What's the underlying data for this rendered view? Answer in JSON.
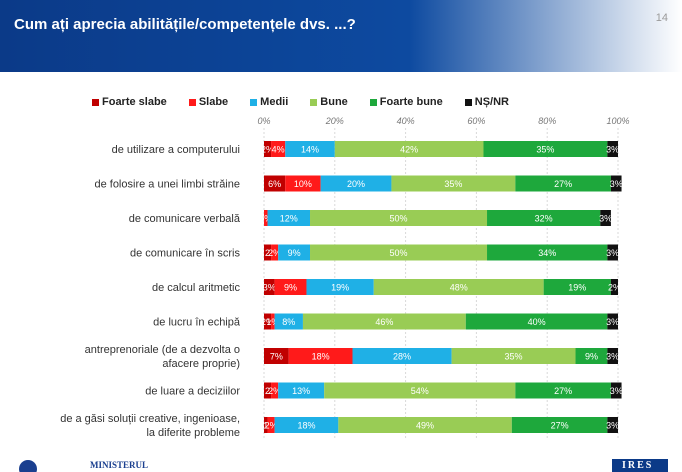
{
  "header": {
    "title": "Cum ați aprecia abilitățile/competențele dvs. ...?",
    "page_number": "14"
  },
  "colors": {
    "foarte_slabe": "#c00000",
    "slabe": "#ff1a1a",
    "medii": "#1fb0e6",
    "bune": "#99cc55",
    "foarte_bune": "#1ea83c",
    "ns_nr": "#111111"
  },
  "footer": {
    "logo_text": "MINISTERUL",
    "brand": "IRES"
  },
  "chart_data": {
    "type": "bar",
    "stacked": true,
    "orientation": "horizontal",
    "xlim": [
      0,
      100
    ],
    "x_ticks": [
      "0%",
      "20%",
      "40%",
      "60%",
      "80%",
      "100%"
    ],
    "legend_position": "top",
    "categories": [
      "de utilizare a computerului",
      "de folosire a unei  limbi străine",
      "de comunicare verbală",
      "de comunicare în scris",
      "de calcul aritmetic",
      "de lucru în echipă",
      "antreprenoriale (de a dezvolta o afacere proprie)",
      "de luare a deciziilor",
      "de a găsi soluții creative, ingenioase, la diferite probleme"
    ],
    "category_lines": [
      [
        "de utilizare a computerului"
      ],
      [
        "de folosire a unei  limbi străine"
      ],
      [
        "de comunicare verbală"
      ],
      [
        "de comunicare în scris"
      ],
      [
        "de calcul aritmetic"
      ],
      [
        "de lucru în echipă"
      ],
      [
        "antreprenoriale (de a dezvolta o",
        "afacere proprie)"
      ],
      [
        "de luare a deciziilor"
      ],
      [
        "de a găsi soluții creative, ingenioase,",
        "la diferite probleme"
      ]
    ],
    "series": [
      {
        "name": "Foarte slabe",
        "color": "#c00000",
        "values": [
          2,
          6,
          0,
          2,
          3,
          2,
          7,
          2,
          1
        ],
        "labels": [
          "2%",
          "6%",
          "",
          "2",
          "3%",
          "2%",
          "7%",
          "2",
          "1"
        ]
      },
      {
        "name": "Slabe",
        "color": "#ff1a1a",
        "values": [
          4,
          10,
          1,
          2,
          9,
          1,
          18,
          2,
          2
        ],
        "labels": [
          "4%",
          "10%",
          "1%",
          "2%",
          "9%",
          "1%",
          "18%",
          "2%",
          "2%"
        ]
      },
      {
        "name": "Medii",
        "color": "#1fb0e6",
        "values": [
          14,
          20,
          12,
          9,
          19,
          8,
          28,
          13,
          18
        ],
        "labels": [
          "14%",
          "20%",
          "12%",
          "9%",
          "19%",
          "8%",
          "28%",
          "13%",
          "18%"
        ]
      },
      {
        "name": "Bune",
        "color": "#99cc55",
        "values": [
          42,
          35,
          50,
          50,
          48,
          46,
          35,
          54,
          49
        ],
        "labels": [
          "42%",
          "35%",
          "50%",
          "50%",
          "48%",
          "46%",
          "35%",
          "54%",
          "49%"
        ]
      },
      {
        "name": "Foarte bune",
        "color": "#1ea83c",
        "values": [
          35,
          27,
          32,
          34,
          19,
          40,
          9,
          27,
          27
        ],
        "labels": [
          "35%",
          "27%",
          "32%",
          "34%",
          "19%",
          "40%",
          "9%",
          "27%",
          "27%"
        ]
      },
      {
        "name": "NȘ/NR",
        "color": "#111111",
        "values": [
          3,
          3,
          3,
          3,
          2,
          3,
          3,
          3,
          3
        ],
        "labels": [
          "3%",
          "3%",
          "3%",
          "3%",
          "2%",
          "3%",
          "3%",
          "3%",
          "3%"
        ]
      }
    ]
  }
}
